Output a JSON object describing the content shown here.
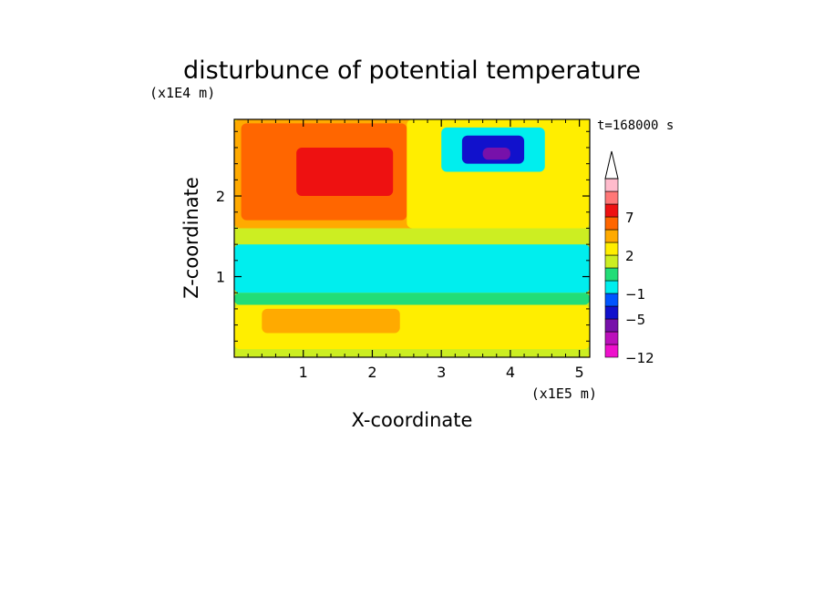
{
  "chart_data": {
    "type": "heatmap",
    "title": "disturbunce of potential temperature",
    "xlabel": "X-coordinate",
    "ylabel": "Z-coordinate",
    "x_unit_label": "(x1E5 m)",
    "y_unit_label": "(x1E4 m)",
    "time_label": "t=168000 s",
    "xlim": [
      0,
      5.15
    ],
    "ylim": [
      0,
      2.95
    ],
    "x_ticks": [
      {
        "value": 1,
        "label": "1"
      },
      {
        "value": 2,
        "label": "2"
      },
      {
        "value": 3,
        "label": "3"
      },
      {
        "value": 4,
        "label": "4"
      },
      {
        "value": 5,
        "label": "5"
      }
    ],
    "y_ticks": [
      {
        "value": 1,
        "label": "1"
      },
      {
        "value": 2,
        "label": "2"
      }
    ],
    "colorbar": {
      "levels": [
        {
          "value": -12,
          "label": "-12"
        },
        {
          "value": -5,
          "label": "-5"
        },
        {
          "value": -1,
          "label": "-1"
        },
        {
          "value": 2,
          "label": "2"
        },
        {
          "value": 7,
          "label": "7"
        }
      ],
      "colors": [
        "#ee11cc",
        "#bb11bb",
        "#7711aa",
        "#1111cc",
        "#0055ff",
        "#00eeee",
        "#22dd77",
        "#ccee22",
        "#ffee00",
        "#ffaa00",
        "#ff6600",
        "#ee1111",
        "#ff7777",
        "#ffbbcc"
      ],
      "extend": "max"
    },
    "field_regions": [
      {
        "x": [
          0,
          5.15
        ],
        "z": [
          0,
          2.95
        ],
        "value": 0.5
      },
      {
        "x": [
          0,
          5.15
        ],
        "z": [
          0.1,
          0.65
        ],
        "value": 1.5
      },
      {
        "x": [
          0.4,
          2.4
        ],
        "z": [
          0.3,
          0.6
        ],
        "value": 2.5
      },
      {
        "x": [
          0,
          5.15
        ],
        "z": [
          0.65,
          0.8
        ],
        "value": -0.5
      },
      {
        "x": [
          0,
          5.15
        ],
        "z": [
          0.8,
          1.4
        ],
        "value": -1.5
      },
      {
        "x": [
          0,
          2.0
        ],
        "z": [
          0.85,
          1.3
        ],
        "value": -3.0
      },
      {
        "x": [
          2.6,
          5.1
        ],
        "z": [
          0.9,
          1.3
        ],
        "value": -3.0
      },
      {
        "x": [
          0,
          5.15
        ],
        "z": [
          1.4,
          1.6
        ],
        "value": 0.5
      },
      {
        "x": [
          0,
          2.7
        ],
        "z": [
          1.6,
          2.95
        ],
        "value": 2.5
      },
      {
        "x": [
          0.1,
          2.5
        ],
        "z": [
          1.7,
          2.9
        ],
        "value": 4.5
      },
      {
        "x": [
          0.9,
          2.3
        ],
        "z": [
          2.0,
          2.6
        ],
        "value": 6.0
      },
      {
        "x": [
          2.5,
          5.15
        ],
        "z": [
          1.6,
          2.95
        ],
        "value": 1.0
      },
      {
        "x": [
          3.0,
          4.5
        ],
        "z": [
          2.3,
          2.85
        ],
        "value": -3.0
      },
      {
        "x": [
          3.3,
          4.2
        ],
        "z": [
          2.4,
          2.75
        ],
        "value": -6.0
      },
      {
        "x": [
          3.6,
          4.0
        ],
        "z": [
          2.45,
          2.6
        ],
        "value": -8.0
      }
    ]
  }
}
